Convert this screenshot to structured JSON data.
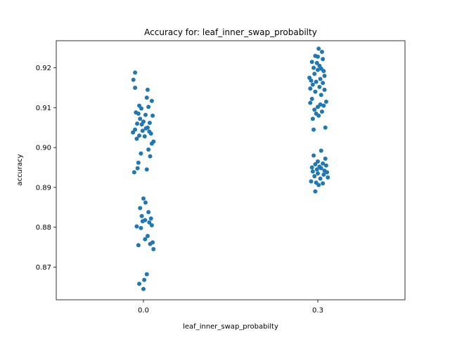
{
  "chart_data": {
    "type": "scatter",
    "title": "Accuracy for: leaf_inner_swap_probabilty",
    "xlabel": "leaf_inner_swap_probabilty",
    "ylabel": "accuracy",
    "categories": [
      "0.0",
      "0.3"
    ],
    "ylim": [
      0.8618,
      0.9268
    ],
    "yticks": [
      "0.87",
      "0.88",
      "0.89",
      "0.90",
      "0.91",
      "0.92"
    ],
    "grid": false,
    "legend": "none",
    "color": "#1f77b4",
    "series": [
      {
        "category": "0.0",
        "points": [
          [
            -0.02,
            0.9188
          ],
          [
            0.01,
            0.9145
          ],
          [
            0.008,
            0.9125
          ],
          [
            0.02,
            0.9117
          ],
          [
            -0.01,
            0.9105
          ],
          [
            0.012,
            0.9102
          ],
          [
            -0.005,
            0.9098
          ],
          [
            -0.018,
            0.9088
          ],
          [
            -0.012,
            0.9085
          ],
          [
            0.005,
            0.9082
          ],
          [
            0.022,
            0.908
          ],
          [
            -0.008,
            0.9072
          ],
          [
            0.0,
            0.9065
          ],
          [
            0.015,
            0.9062
          ],
          [
            -0.015,
            0.906
          ],
          [
            -0.004,
            0.9058
          ],
          [
            0.01,
            0.905
          ],
          [
            0.006,
            0.9048
          ],
          [
            -0.02,
            0.9045
          ],
          [
            -0.002,
            0.9042
          ],
          [
            0.014,
            0.904
          ],
          [
            -0.025,
            0.9038
          ],
          [
            0.018,
            0.9035
          ],
          [
            -0.01,
            0.903
          ],
          [
            0.003,
            0.9028
          ],
          [
            -0.016,
            0.9022
          ],
          [
            0.024,
            0.9015
          ],
          [
            0.02,
            0.901
          ],
          [
            0.012,
            0.8995
          ],
          [
            -0.006,
            0.8985
          ],
          [
            0.016,
            0.8978
          ],
          [
            -0.012,
            0.8962
          ],
          [
            -0.014,
            0.8948
          ],
          [
            0.008,
            0.8945
          ],
          [
            -0.022,
            0.8938
          ],
          [
            -0.024,
            0.917
          ],
          [
            -0.02,
            0.915
          ],
          [
            0.0,
            0.8872
          ],
          [
            0.005,
            0.8862
          ],
          [
            -0.008,
            0.8848
          ],
          [
            -0.004,
            0.8828
          ],
          [
            0.012,
            0.8838
          ],
          [
            0.018,
            0.8822
          ],
          [
            0.004,
            0.8818
          ],
          [
            -0.002,
            0.8815
          ],
          [
            0.014,
            0.8812
          ],
          [
            0.02,
            0.8805
          ],
          [
            -0.016,
            0.8802
          ],
          [
            -0.006,
            0.8798
          ],
          [
            0.01,
            0.8778
          ],
          [
            0.004,
            0.877
          ],
          [
            0.022,
            0.8762
          ],
          [
            0.016,
            0.8758
          ],
          [
            -0.012,
            0.8755
          ],
          [
            0.024,
            0.8745
          ],
          [
            0.008,
            0.8682
          ],
          [
            0.002,
            0.8668
          ],
          [
            -0.01,
            0.8658
          ],
          [
            0.0,
            0.8645
          ]
        ]
      },
      {
        "category": "0.3",
        "points": [
          [
            0.002,
            0.9248
          ],
          [
            0.01,
            0.924
          ],
          [
            -0.006,
            0.923
          ],
          [
            0.0,
            0.9228
          ],
          [
            0.012,
            0.9222
          ],
          [
            -0.014,
            0.9215
          ],
          [
            -0.002,
            0.9212
          ],
          [
            0.004,
            0.9205
          ],
          [
            -0.01,
            0.92
          ],
          [
            0.008,
            0.9198
          ],
          [
            0.014,
            0.9192
          ],
          [
            0.0,
            0.9195
          ],
          [
            -0.008,
            0.9185
          ],
          [
            0.016,
            0.918
          ],
          [
            -0.02,
            0.9175
          ],
          [
            0.006,
            0.9172
          ],
          [
            -0.016,
            0.9168
          ],
          [
            -0.004,
            0.9165
          ],
          [
            0.012,
            0.9162
          ],
          [
            -0.012,
            0.9158
          ],
          [
            0.004,
            0.9152
          ],
          [
            -0.018,
            0.9148
          ],
          [
            0.016,
            0.9145
          ],
          [
            -0.006,
            0.914
          ],
          [
            0.008,
            0.9132
          ],
          [
            -0.014,
            0.9122
          ],
          [
            0.02,
            0.9115
          ],
          [
            -0.018,
            0.9112
          ],
          [
            0.006,
            0.9108
          ],
          [
            0.014,
            0.9105
          ],
          [
            0.0,
            0.9102
          ],
          [
            -0.008,
            0.9095
          ],
          [
            0.01,
            0.909
          ],
          [
            -0.004,
            0.9085
          ],
          [
            0.002,
            0.908
          ],
          [
            -0.012,
            0.9072
          ],
          [
            0.018,
            0.905
          ],
          [
            -0.01,
            0.9045
          ],
          [
            0.008,
            0.8992
          ],
          [
            -0.01,
            0.898
          ],
          [
            0.018,
            0.8972
          ],
          [
            0.0,
            0.8965
          ],
          [
            0.012,
            0.896
          ],
          [
            -0.006,
            0.8958
          ],
          [
            0.02,
            0.8955
          ],
          [
            0.004,
            0.8952
          ],
          [
            -0.014,
            0.895
          ],
          [
            0.008,
            0.8948
          ],
          [
            -0.002,
            0.8945
          ],
          [
            0.016,
            0.8942
          ],
          [
            -0.012,
            0.894
          ],
          [
            0.022,
            0.8938
          ],
          [
            0.0,
            0.8935
          ],
          [
            0.014,
            0.8932
          ],
          [
            -0.008,
            0.8928
          ],
          [
            0.024,
            0.8925
          ],
          [
            0.006,
            0.8922
          ],
          [
            -0.016,
            0.8915
          ],
          [
            -0.004,
            0.8912
          ],
          [
            0.012,
            0.891
          ],
          [
            0.002,
            0.8906
          ],
          [
            -0.006,
            0.889
          ]
        ]
      }
    ]
  }
}
